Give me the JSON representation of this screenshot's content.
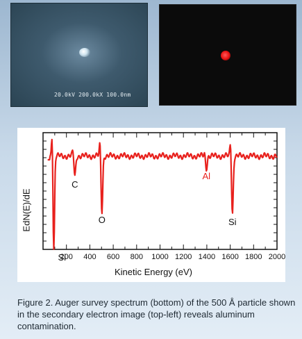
{
  "images": {
    "sem": {
      "scale_bar_text": "20.0kV 200.0kX 100.0nm"
    },
    "auger_map": {}
  },
  "chart_data": {
    "type": "line",
    "xlabel": "Kinetic Energy (eV)",
    "ylabel": "EdN(E)/dE",
    "xlim": [
      0,
      2000
    ],
    "ylim": [
      -1.0,
      0.25
    ],
    "x_ticks": [
      200,
      400,
      600,
      800,
      1000,
      1200,
      1400,
      1600,
      1800,
      2000
    ],
    "grid": false,
    "series": [
      {
        "color": "#e8211d",
        "peaks": [
          {
            "element": "Si",
            "energy": 92,
            "depth": -1.0
          },
          {
            "element": "C",
            "energy": 272,
            "depth": -0.22
          },
          {
            "element": "O",
            "energy": 503,
            "depth": -0.6
          },
          {
            "element": "Al",
            "energy": 1396,
            "depth": -0.13
          },
          {
            "element": "Si",
            "energy": 1619,
            "depth": -0.62
          }
        ]
      }
    ],
    "annotations": [
      {
        "text": "Si",
        "energy": 92,
        "color": "#111111"
      },
      {
        "text": "C",
        "energy": 272,
        "color": "#111111"
      },
      {
        "text": "O",
        "energy": 503,
        "color": "#111111"
      },
      {
        "text": "Al",
        "energy": 1396,
        "color": "#e8211d"
      },
      {
        "text": "Si",
        "energy": 1619,
        "color": "#111111"
      }
    ]
  },
  "caption": "Figure 2.  Auger survey spectrum (bottom) of the 500 Å particle shown in the secondary electron image (top-left) reveals aluminum contamination."
}
